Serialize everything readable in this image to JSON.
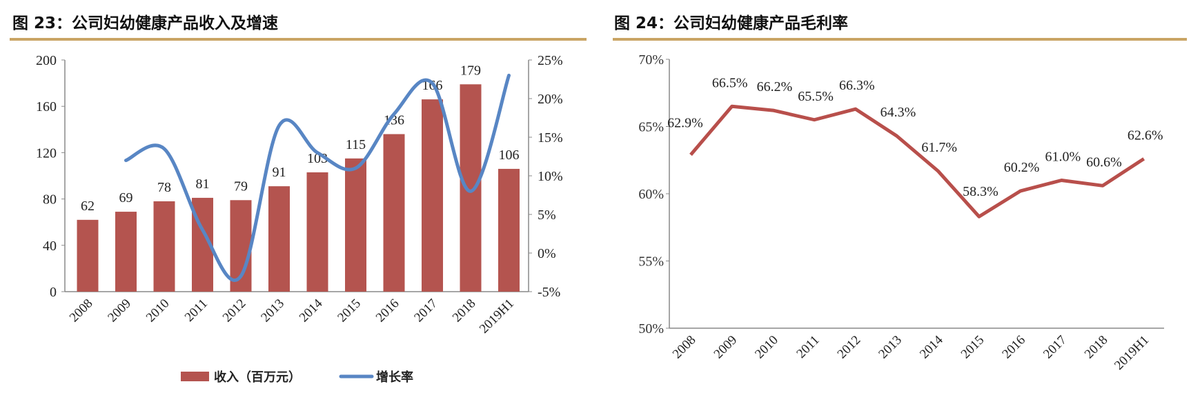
{
  "chart_data": [
    {
      "type": "bar+line",
      "title": "图 23：公司妇幼健康产品收入及增速",
      "categories": [
        "2008",
        "2009",
        "2010",
        "2011",
        "2012",
        "2013",
        "2014",
        "2015",
        "2016",
        "2017",
        "2018",
        "2019H1"
      ],
      "series": [
        {
          "name": "收入（百万元）",
          "type": "bar",
          "axis": "left",
          "color": "#b4544f",
          "values": [
            62,
            69,
            78,
            81,
            79,
            91,
            103,
            115,
            136,
            166,
            179,
            106
          ]
        },
        {
          "name": "增长率",
          "type": "line",
          "axis": "right",
          "smooth": true,
          "color": "#5886c4",
          "values": [
            null,
            12.0,
            13.5,
            3.0,
            -3.0,
            16.5,
            13.0,
            11.0,
            18.0,
            22.0,
            8.0,
            23.0
          ]
        }
      ],
      "yleft": {
        "lim": [
          0,
          200
        ],
        "ticks": [
          0,
          40,
          80,
          120,
          160,
          200
        ]
      },
      "yright": {
        "lim": [
          -5,
          25
        ],
        "ticks": [
          -5,
          0,
          5,
          10,
          15,
          20,
          25
        ],
        "unit": "%"
      },
      "legend": "bottom",
      "grid": false
    },
    {
      "type": "line",
      "title": "图 24：公司妇幼健康产品毛利率",
      "categories": [
        "2008",
        "2009",
        "2010",
        "2011",
        "2012",
        "2013",
        "2014",
        "2015",
        "2016",
        "2017",
        "2018",
        "2019H1"
      ],
      "series": [
        {
          "type": "line",
          "color": "#b84f4b",
          "values": [
            62.9,
            66.5,
            66.2,
            65.5,
            66.3,
            64.3,
            61.7,
            58.3,
            60.2,
            61.0,
            60.6,
            62.6
          ],
          "labels": [
            "62.9%",
            "66.5%",
            "66.2%",
            "65.5%",
            "66.3%",
            "64.3%",
            "61.7%",
            "58.3%",
            "60.2%",
            "61.0%",
            "60.6%",
            "62.6%"
          ]
        }
      ],
      "y": {
        "lim": [
          50,
          70
        ],
        "ticks": [
          50,
          55,
          60,
          65,
          70
        ],
        "unit": "%"
      },
      "grid": false
    }
  ],
  "accent_rule_color": "#c9a464"
}
